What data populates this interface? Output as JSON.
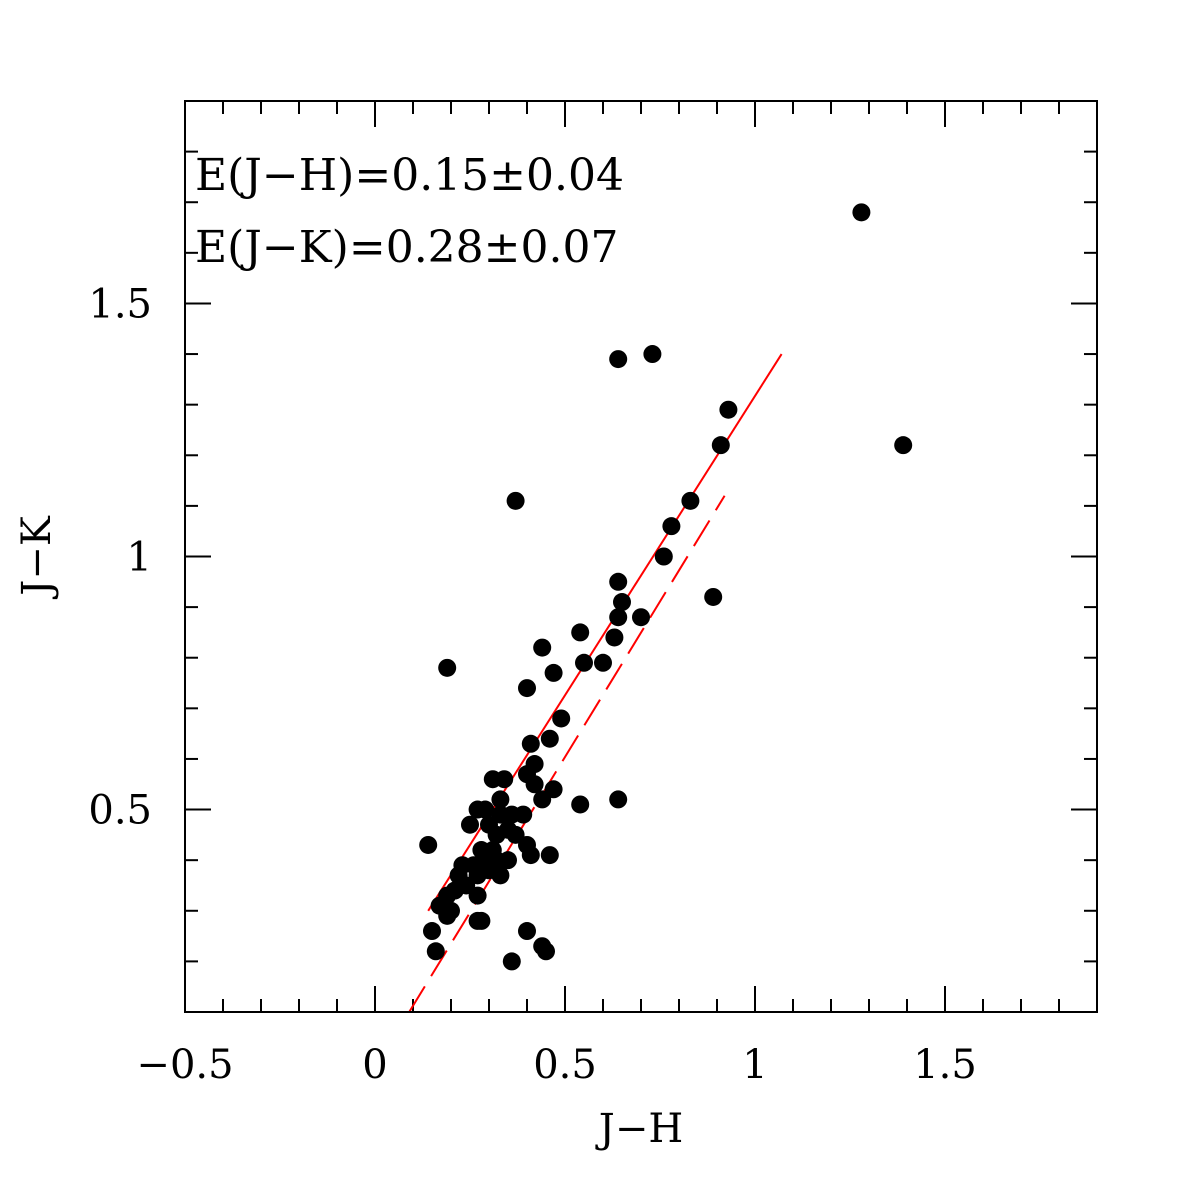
{
  "chart_data": {
    "type": "scatter",
    "xlabel": "J−H",
    "ylabel": "J−K",
    "xlim": [
      -0.5,
      1.9
    ],
    "ylim": [
      0.1,
      1.9
    ],
    "xticks_major": [
      -0.5,
      0,
      0.5,
      1,
      1.5
    ],
    "xtick_labels": [
      "−0.5",
      "0",
      "0.5",
      "1",
      "1.5"
    ],
    "yticks_major": [
      0.5,
      1,
      1.5
    ],
    "ytick_labels": [
      "0.5",
      "1",
      "1.5"
    ],
    "minor_tick_step": 0.1,
    "annotations": [
      "E(J−H)=0.15±0.04",
      "E(J−K)=0.28±0.07"
    ],
    "colors": {
      "points": "#000000",
      "lines": "#ff0000",
      "frame": "#000000"
    },
    "lines": [
      {
        "style": "solid",
        "x": [
          0.14,
          1.07
        ],
        "y": [
          0.3,
          1.4
        ]
      },
      {
        "style": "dashed",
        "x": [
          0.09,
          0.92
        ],
        "y": [
          0.1,
          1.12
        ]
      }
    ],
    "points": [
      [
        1.28,
        1.68
      ],
      [
        1.39,
        1.22
      ],
      [
        0.73,
        1.4
      ],
      [
        0.64,
        1.39
      ],
      [
        0.93,
        1.29
      ],
      [
        0.91,
        1.22
      ],
      [
        0.37,
        1.11
      ],
      [
        0.83,
        1.11
      ],
      [
        0.78,
        1.06
      ],
      [
        0.76,
        1.0
      ],
      [
        0.89,
        0.92
      ],
      [
        0.64,
        0.95
      ],
      [
        0.65,
        0.91
      ],
      [
        0.64,
        0.88
      ],
      [
        0.7,
        0.88
      ],
      [
        0.54,
        0.85
      ],
      [
        0.63,
        0.84
      ],
      [
        0.44,
        0.82
      ],
      [
        0.6,
        0.79
      ],
      [
        0.55,
        0.79
      ],
      [
        0.19,
        0.78
      ],
      [
        0.47,
        0.77
      ],
      [
        0.4,
        0.74
      ],
      [
        0.49,
        0.68
      ],
      [
        0.41,
        0.63
      ],
      [
        0.46,
        0.64
      ],
      [
        0.4,
        0.57
      ],
      [
        0.42,
        0.59
      ],
      [
        0.31,
        0.56
      ],
      [
        0.34,
        0.56
      ],
      [
        0.42,
        0.55
      ],
      [
        0.47,
        0.54
      ],
      [
        0.33,
        0.52
      ],
      [
        0.44,
        0.52
      ],
      [
        0.54,
        0.51
      ],
      [
        0.64,
        0.52
      ],
      [
        0.27,
        0.5
      ],
      [
        0.29,
        0.5
      ],
      [
        0.33,
        0.49
      ],
      [
        0.36,
        0.49
      ],
      [
        0.39,
        0.49
      ],
      [
        0.25,
        0.47
      ],
      [
        0.3,
        0.47
      ],
      [
        0.35,
        0.46
      ],
      [
        0.32,
        0.45
      ],
      [
        0.37,
        0.45
      ],
      [
        0.14,
        0.43
      ],
      [
        0.28,
        0.42
      ],
      [
        0.31,
        0.42
      ],
      [
        0.4,
        0.43
      ],
      [
        0.41,
        0.41
      ],
      [
        0.46,
        0.41
      ],
      [
        0.23,
        0.39
      ],
      [
        0.26,
        0.39
      ],
      [
        0.29,
        0.39
      ],
      [
        0.32,
        0.4
      ],
      [
        0.35,
        0.4
      ],
      [
        0.22,
        0.37
      ],
      [
        0.27,
        0.37
      ],
      [
        0.3,
        0.38
      ],
      [
        0.33,
        0.37
      ],
      [
        0.24,
        0.35
      ],
      [
        0.21,
        0.34
      ],
      [
        0.19,
        0.33
      ],
      [
        0.27,
        0.33
      ],
      [
        0.17,
        0.31
      ],
      [
        0.2,
        0.3
      ],
      [
        0.19,
        0.29
      ],
      [
        0.28,
        0.28
      ],
      [
        0.27,
        0.28
      ],
      [
        0.15,
        0.26
      ],
      [
        0.4,
        0.26
      ],
      [
        0.16,
        0.22
      ],
      [
        0.44,
        0.23
      ],
      [
        0.45,
        0.22
      ],
      [
        0.36,
        0.2
      ]
    ]
  }
}
